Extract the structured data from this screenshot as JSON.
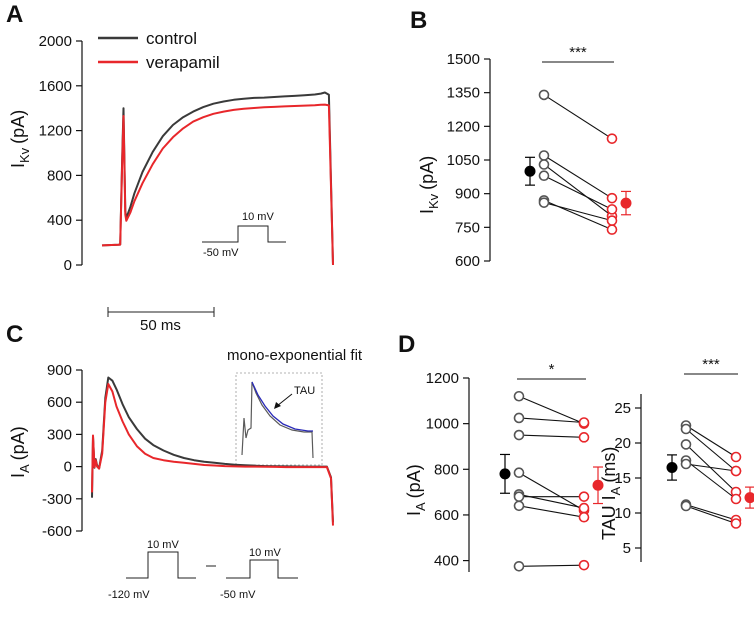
{
  "colors": {
    "control": "#3a3a3a",
    "verapamil": "#e8272b",
    "fit": "#2a2ab8",
    "mean_control": "#000000"
  },
  "panels": {
    "a": "A",
    "b": "B",
    "c": "C",
    "d": "D"
  },
  "scale_bar": "50 ms",
  "chart_data": [
    {
      "id": "A",
      "type": "line",
      "title": "",
      "ylabel": "I",
      "ylabel_sub": "Kv",
      "ylabel_unit": "(pA)",
      "ylim": [
        0,
        2000
      ],
      "yticks": [
        "0",
        "400",
        "800",
        "1200",
        "1600",
        "2000"
      ],
      "legend": [
        "control",
        "verapamil"
      ],
      "x_ms": [
        0,
        8,
        9,
        10,
        10.6,
        11,
        11.5,
        12,
        14,
        16,
        20,
        25,
        30,
        35,
        40,
        45,
        50,
        55,
        60,
        65,
        70,
        75,
        80,
        85,
        90,
        95,
        100,
        105,
        108,
        110,
        112,
        114
      ],
      "series": [
        {
          "name": "control",
          "values": [
            175,
            180,
            182,
            1000,
            1400,
            1000,
            480,
            420,
            520,
            640,
            830,
            1010,
            1150,
            1250,
            1320,
            1370,
            1410,
            1440,
            1460,
            1475,
            1485,
            1492,
            1495,
            1500,
            1505,
            1510,
            1515,
            1522,
            1530,
            1540,
            1520,
            0
          ]
        },
        {
          "name": "verapamil",
          "values": [
            175,
            180,
            182,
            950,
            1330,
            950,
            450,
            395,
            470,
            570,
            730,
            900,
            1040,
            1140,
            1220,
            1280,
            1320,
            1350,
            1370,
            1385,
            1395,
            1402,
            1408,
            1412,
            1416,
            1420,
            1423,
            1426,
            1430,
            1432,
            1425,
            0
          ]
        }
      ],
      "protocol": {
        "pre": "-50 mV",
        "step": "10 mV"
      }
    },
    {
      "id": "B",
      "type": "scatter",
      "ylabel": "I",
      "ylabel_sub": "Kv",
      "ylabel_unit": "(pA)",
      "ylim": [
        600,
        1500
      ],
      "yticks": [
        "600",
        "750",
        "900",
        "1050",
        "1200",
        "1350",
        "1500"
      ],
      "groups": [
        "control",
        "verapamil"
      ],
      "pairs": [
        [
          1340,
          1145
        ],
        [
          1070,
          880
        ],
        [
          1030,
          800
        ],
        [
          980,
          830
        ],
        [
          870,
          740
        ],
        [
          860,
          780
        ]
      ],
      "means": [
        {
          "value": 1000,
          "sem": 62
        },
        {
          "value": 858,
          "sem": 52
        }
      ],
      "significance": "***"
    },
    {
      "id": "C",
      "type": "line",
      "ylabel": "I",
      "ylabel_sub": "A",
      "ylabel_unit": "(pA)",
      "ylim": [
        -600,
        900
      ],
      "yticks": [
        "-600",
        "-300",
        "0",
        "300",
        "600",
        "900"
      ],
      "annotation": "mono-exponential fit",
      "inset_label": "TAU",
      "x_ms": [
        0,
        0.5,
        1.2,
        1.8,
        2.5,
        3.5,
        5,
        6.5,
        8,
        10,
        12,
        15,
        18,
        22,
        26,
        30,
        35,
        40,
        45,
        50,
        55,
        60,
        65,
        70,
        75,
        80,
        85,
        90,
        95,
        100,
        105,
        110,
        115,
        117,
        118
      ],
      "series": [
        {
          "name": "control",
          "values": [
            -290,
            280,
            -10,
            70,
            10,
            -15,
            150,
            640,
            830,
            800,
            720,
            580,
            460,
            350,
            260,
            200,
            150,
            110,
            80,
            60,
            45,
            35,
            25,
            18,
            12,
            8,
            5,
            3,
            2,
            1,
            0,
            0,
            0,
            -100,
            -520
          ]
        },
        {
          "name": "verapamil",
          "values": [
            -240,
            290,
            -5,
            60,
            0,
            -20,
            120,
            600,
            770,
            700,
            560,
            420,
            300,
            190,
            120,
            80,
            60,
            45,
            35,
            25,
            15,
            10,
            5,
            2,
            0,
            0,
            -2,
            -3,
            -5,
            -5,
            -5,
            -5,
            -5,
            -110,
            -550
          ]
        }
      ],
      "protocols": [
        {
          "pre": "-120 mV",
          "step": "10 mV"
        },
        {
          "pre": "-50 mV",
          "step": "10 mV"
        }
      ]
    },
    {
      "id": "D1",
      "type": "scatter",
      "ylabel": "I",
      "ylabel_sub": "A",
      "ylabel_unit": "(pA)",
      "ylim": [
        350,
        1200
      ],
      "yticks": [
        "400",
        "600",
        "800",
        "1000",
        "1200"
      ],
      "groups": [
        "control",
        "verapamil"
      ],
      "pairs": [
        [
          1120,
          1000
        ],
        [
          1025,
          1005
        ],
        [
          950,
          940
        ],
        [
          785,
          620
        ],
        [
          690,
          630
        ],
        [
          680,
          680
        ],
        [
          640,
          590
        ],
        [
          375,
          380
        ]
      ],
      "means": [
        {
          "value": 780,
          "sem": 85
        },
        {
          "value": 730,
          "sem": 80
        }
      ],
      "significance": "*"
    },
    {
      "id": "D2",
      "type": "scatter",
      "ylabel": "TAU I",
      "ylabel_sub": "A",
      "ylabel_unit": "(ms)",
      "ylim": [
        3,
        27
      ],
      "yticks": [
        "5",
        "10",
        "15",
        "20",
        "25"
      ],
      "groups": [
        "control",
        "verapamil"
      ],
      "pairs": [
        [
          22.5,
          18
        ],
        [
          22,
          16
        ],
        [
          19.8,
          13
        ],
        [
          17.5,
          12
        ],
        [
          17,
          16
        ],
        [
          11.2,
          9
        ],
        [
          11,
          8.5
        ]
      ],
      "means": [
        {
          "value": 16.5,
          "sem": 1.8
        },
        {
          "value": 12.2,
          "sem": 1.5
        }
      ],
      "significance": "***"
    }
  ]
}
